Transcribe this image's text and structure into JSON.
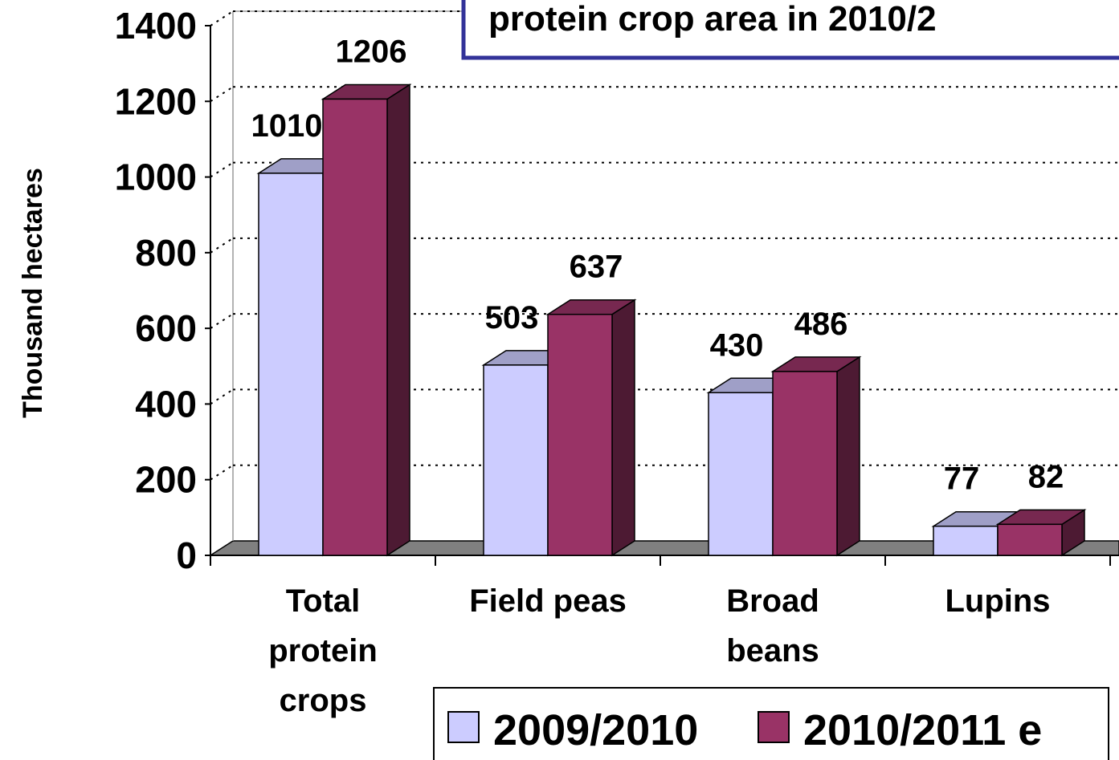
{
  "chart_data": {
    "type": "bar",
    "title": "protein crop area in 2010/2",
    "y_label": "Thousand hectares",
    "categories": [
      [
        "Total",
        "protein",
        "crops"
      ],
      [
        "Field peas"
      ],
      [
        "Broad",
        "beans"
      ],
      [
        "Lupins"
      ]
    ],
    "series": [
      {
        "name": "2009/2010",
        "color": "#ccccff",
        "values": [
          1010,
          503,
          430,
          77
        ]
      },
      {
        "name": "2010/2011 e",
        "color": "#993366",
        "values": [
          1206,
          637,
          486,
          82
        ]
      }
    ],
    "ylim": [
      0,
      1400
    ],
    "yticks": [
      0,
      200,
      400,
      600,
      800,
      1000,
      1200,
      1400
    ],
    "grid": true
  }
}
